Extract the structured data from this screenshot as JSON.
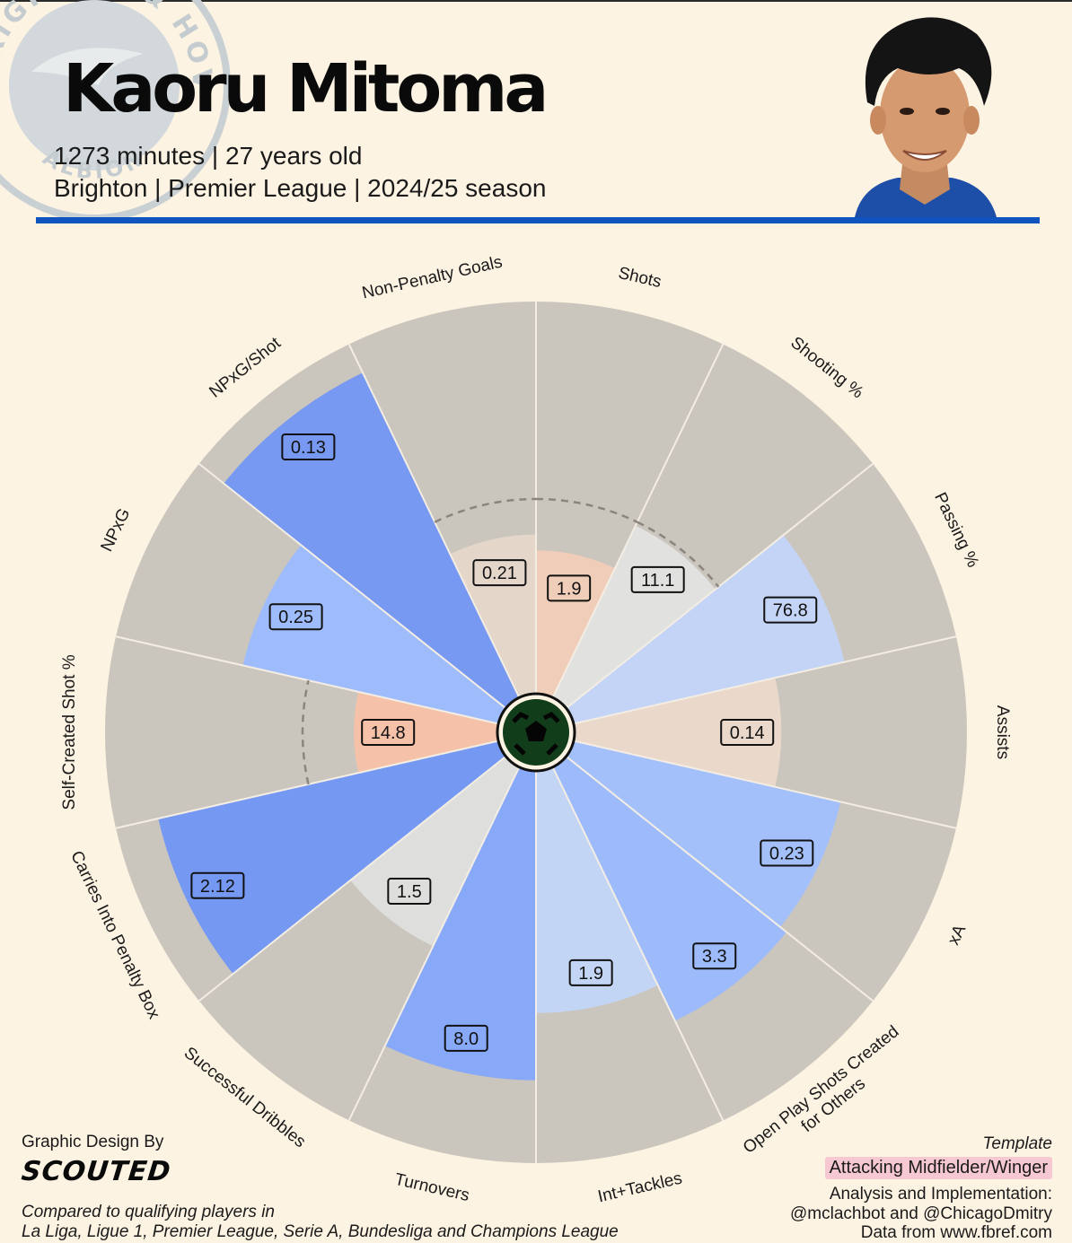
{
  "header": {
    "player_name": "Kaoru Mitoma",
    "subtitle_line1": "1273 minutes | 27 years old",
    "subtitle_line2": "Brighton | Premier League | 2024/25 season",
    "crest_text_top": "BRIGHTON & HOVE",
    "crest_text_bottom": "ALBION",
    "accent_color": "#1054c0"
  },
  "chart_data": {
    "type": "pizza",
    "max_percentile": 100,
    "slices": [
      {
        "label": "Non-Penalty Goals",
        "value_label": "0.21",
        "percentile": 41,
        "color": "#e4d7ca"
      },
      {
        "label": "Shots",
        "value_label": "1.9",
        "percentile": 37,
        "color": "#f0cdb9"
      },
      {
        "label": "Shooting %",
        "value_label": "11.1",
        "percentile": 49,
        "color": "#e1e1e0"
      },
      {
        "label": "Passing %",
        "value_label": "76.8",
        "percentile": 71,
        "color": "#c3d4f6"
      },
      {
        "label": "Assists",
        "value_label": "0.14",
        "percentile": 53,
        "color": "#ead9cb"
      },
      {
        "label": "xA",
        "value_label": "0.23",
        "percentile": 70,
        "color": "#a3c0fb"
      },
      {
        "label": "Open Play Shots Created\nfor Others",
        "value_label": "3.3",
        "percentile": 72,
        "color": "#9dbbfb"
      },
      {
        "label": "Int+Tackles",
        "value_label": "1.9",
        "percentile": 62,
        "color": "#c3d5f4"
      },
      {
        "label": "Turnovers",
        "value_label": "8.0",
        "percentile": 79,
        "color": "#88a9f8"
      },
      {
        "label": "Successful Dribbles",
        "value_label": "1.5",
        "percentile": 51,
        "color": "#dedfdd"
      },
      {
        "label": "Carries Into Penalty Box",
        "value_label": "2.12",
        "percentile": 89,
        "color": "#7599f3"
      },
      {
        "label": "Self-Created Shot %",
        "value_label": "14.8",
        "percentile": 37,
        "color": "#f5c2a9"
      },
      {
        "label": "NPxG",
        "value_label": "0.25",
        "percentile": 67,
        "color": "#9ebcfc"
      },
      {
        "label": "NPxG/Shot",
        "value_label": "0.13",
        "percentile": 92,
        "color": "#7799f2"
      }
    ],
    "background_color": "#cbc6bd",
    "reference_ring_percentile": 50
  },
  "footer": {
    "design_credit": "Graphic Design By",
    "brand": "SCOUTED",
    "comparison_line1": "Compared to qualifying players in",
    "comparison_line2": "La Liga, Ligue 1, Premier League, Serie A, Bundesliga and Champions League",
    "template_label": "Template",
    "template_value": "Attacking Midfielder/Winger",
    "analysis_line1": "Analysis and Implementation:",
    "analysis_line2": "@mclachbot and @ChicagoDmitry",
    "data_source": "Data from www.fbref.com"
  }
}
